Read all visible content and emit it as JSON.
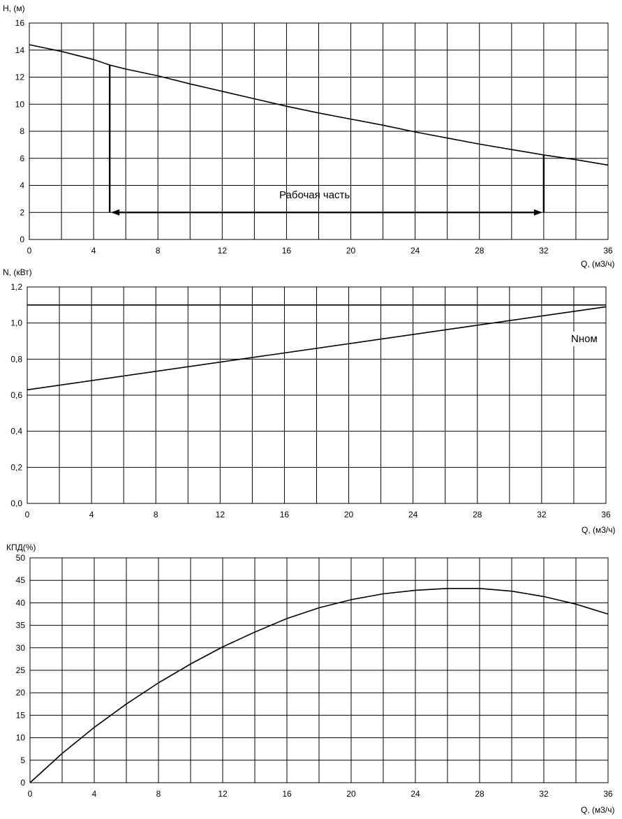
{
  "chart_data": [
    {
      "id": "head",
      "type": "line",
      "ylabel": "H, (м)",
      "xlabel": "Q, (м3/ч)",
      "xlim": [
        0,
        36
      ],
      "ylim": [
        0,
        16
      ],
      "xticks": [
        0,
        4,
        8,
        12,
        16,
        20,
        24,
        28,
        32,
        36
      ],
      "yticks": [
        0,
        2,
        4,
        6,
        8,
        10,
        12,
        14,
        16
      ],
      "ytick_labels": [
        "0",
        "2",
        "4",
        "6",
        "8",
        "10",
        "12",
        "14",
        "16"
      ],
      "grid_x_step": 2,
      "grid": true,
      "series": [
        {
          "x": [
            0,
            2,
            4,
            5,
            6,
            8,
            10,
            12,
            14,
            16,
            18,
            20,
            22,
            24,
            26,
            28,
            30,
            32,
            34,
            36
          ],
          "y": [
            14.4,
            13.9,
            13.3,
            12.9,
            12.6,
            12.1,
            11.5,
            10.95,
            10.4,
            9.85,
            9.35,
            8.9,
            8.45,
            7.95,
            7.5,
            7.05,
            6.65,
            6.25,
            5.9,
            5.5
          ]
        }
      ],
      "annotations": [
        {
          "text": "Рабочая часть",
          "x": 18,
          "y": 3.4
        }
      ],
      "working_range": {
        "from": 5,
        "to": 32,
        "arrow_y": 2,
        "top_from": 12.9,
        "top_to": 6.2
      }
    },
    {
      "id": "power",
      "type": "line",
      "ylabel": "N, (кВт)",
      "xlabel": "Q, (м3/ч)",
      "xlim": [
        0,
        36
      ],
      "ylim": [
        0,
        1.2
      ],
      "xticks": [
        0,
        4,
        8,
        12,
        16,
        20,
        24,
        28,
        32,
        36
      ],
      "yticks": [
        0,
        0.2,
        0.4,
        0.6,
        0.8,
        1.0,
        1.2
      ],
      "ytick_labels": [
        "0,0",
        "0,2",
        "0,4",
        "0,6",
        "0,8",
        "1,0",
        "1,2"
      ],
      "grid_x_step": 2,
      "grid": true,
      "series": [
        {
          "x": [
            0,
            36
          ],
          "y": [
            0.63,
            1.09
          ]
        },
        {
          "name": "Nном",
          "x": [
            0,
            36
          ],
          "y": [
            1.1,
            1.1
          ]
        }
      ],
      "annotations": [
        {
          "text": "Nном",
          "x": 34.7,
          "y": 0.9
        }
      ]
    },
    {
      "id": "efficiency",
      "type": "line",
      "ylabel": "КПД(%)",
      "xlabel": "Q, (м3/ч)",
      "xlim": [
        0,
        36
      ],
      "ylim": [
        0,
        50
      ],
      "xticks": [
        0,
        4,
        8,
        12,
        16,
        20,
        24,
        28,
        32,
        36
      ],
      "yticks": [
        0,
        5,
        10,
        15,
        20,
        25,
        30,
        35,
        40,
        45,
        50
      ],
      "ytick_labels": [
        "0",
        "5",
        "10",
        "15",
        "20",
        "25",
        "30",
        "35",
        "40",
        "45",
        "50"
      ],
      "grid_x_step": 2,
      "grid": true,
      "series": [
        {
          "x": [
            0,
            2,
            4,
            6,
            8,
            10,
            12,
            14,
            16,
            18,
            20,
            22,
            24,
            26,
            28,
            30,
            32,
            34,
            36
          ],
          "y": [
            0,
            6.5,
            12.3,
            17.5,
            22.2,
            26.4,
            30.2,
            33.5,
            36.5,
            38.9,
            40.7,
            42.0,
            42.8,
            43.2,
            43.2,
            42.6,
            41.4,
            39.7,
            37.5
          ]
        }
      ],
      "annotations": []
    }
  ]
}
